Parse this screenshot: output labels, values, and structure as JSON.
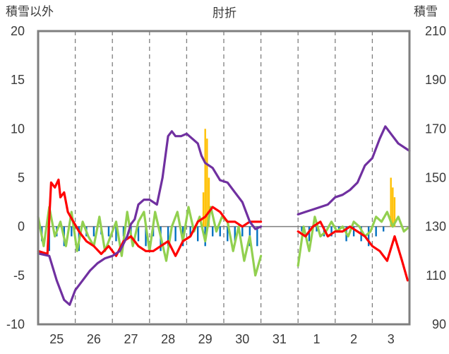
{
  "chart_data": {
    "type": "line",
    "title": "肘折",
    "ylabel_left": "積雪以外",
    "ylabel_right": "積雪",
    "ylim_left": [
      -10,
      20
    ],
    "ylim_right": [
      90,
      210
    ],
    "yticks_left": [
      "20",
      "15",
      "10",
      "5",
      "0",
      "-5",
      "-10"
    ],
    "yticks_right": [
      "210",
      "190",
      "170",
      "150",
      "130",
      "110",
      "90"
    ],
    "xlim": [
      24.5,
      34.5
    ],
    "categories": [
      "25",
      "26",
      "27",
      "28",
      "29",
      "30",
      "31",
      "1",
      "2",
      "3"
    ],
    "grid": "vertical-dashed",
    "colors": {
      "purple_series": "#7030a0",
      "red_series": "#ff0000",
      "green_series": "#92d050",
      "blue_bars": "#0070c0",
      "orange_bars": "#ffc000",
      "frame": "#7f7f7f",
      "grid": "#7f7f7f"
    },
    "series": [
      {
        "axis": "right",
        "color": "#7030a0",
        "x": [
          24.5,
          24.8,
          25.0,
          25.2,
          25.35,
          25.5,
          25.7,
          25.9,
          26.1,
          26.3,
          26.5,
          26.7,
          26.8,
          26.9,
          27.0,
          27.1,
          27.2,
          27.35,
          27.5,
          27.7,
          27.85,
          28.0,
          28.1,
          28.2,
          28.35,
          28.5,
          28.65,
          28.8,
          28.9,
          29.0,
          29.2,
          29.4,
          29.6,
          29.8,
          30.0,
          30.2,
          30.35,
          30.5
        ],
        "y": [
          119,
          118,
          108,
          100,
          98,
          104,
          108,
          112,
          115,
          117,
          118,
          120,
          123,
          126,
          131,
          133,
          139,
          141,
          141,
          139,
          150,
          167,
          169,
          167,
          167,
          168,
          166,
          164,
          159,
          156,
          154,
          149,
          148,
          144,
          140,
          132,
          129,
          130
        ],
        "gaps_after": [
          30.5
        ],
        "x2": [
          31.5,
          31.7,
          31.9,
          32.1,
          32.3,
          32.5,
          32.7,
          32.9,
          33.1,
          33.3,
          33.5,
          33.7,
          33.85,
          34.0,
          34.2,
          34.4,
          34.5
        ],
        "y2": [
          135,
          136,
          137,
          138,
          139,
          142,
          143,
          145,
          148,
          155,
          158,
          166,
          171,
          168,
          164,
          162,
          161
        ]
      },
      {
        "axis": "left",
        "color": "#ff0000",
        "x": [
          24.5,
          24.75,
          24.85,
          24.95,
          25.05,
          25.1,
          25.2,
          25.3,
          25.45,
          25.6,
          25.8,
          26.0,
          26.2,
          26.4,
          26.6,
          26.8,
          27.0,
          27.2,
          27.4,
          27.6,
          27.8,
          28.0,
          28.2,
          28.4,
          28.6,
          28.8,
          29.0,
          29.2,
          29.4,
          29.6,
          29.8,
          30.0,
          30.2,
          30.4,
          30.5
        ],
        "y": [
          -2.5,
          -2.8,
          4.5,
          4.0,
          4.8,
          3.0,
          3.5,
          1.5,
          0.5,
          -0.5,
          -1.5,
          -2.0,
          -2.8,
          -2.0,
          -3.0,
          -1.5,
          -1.0,
          -2.0,
          -2.5,
          -2.5,
          -2.0,
          -1.5,
          -3.0,
          -1.5,
          -1.0,
          0.5,
          1.0,
          2.0,
          1.5,
          0.5,
          0.5,
          0.0,
          0.5,
          0.5,
          0.5
        ],
        "x2": [
          31.5,
          31.7,
          31.9,
          32.1,
          32.3,
          32.5,
          32.7,
          32.9,
          33.1,
          33.3,
          33.5,
          33.7,
          33.9,
          34.1,
          34.3,
          34.45
        ],
        "y2": [
          -0.5,
          -1.0,
          0.0,
          0.5,
          -1.0,
          -0.5,
          -0.5,
          0.0,
          -0.5,
          -1.0,
          -2.0,
          -2.5,
          -3.5,
          -1.0,
          -3.5,
          -5.5
        ]
      },
      {
        "axis": "left",
        "color": "#92d050",
        "x": [
          24.5,
          24.65,
          24.8,
          24.95,
          25.1,
          25.25,
          25.4,
          25.55,
          25.7,
          25.85,
          26.0,
          26.15,
          26.3,
          26.45,
          26.6,
          26.75,
          26.9,
          27.05,
          27.2,
          27.35,
          27.5,
          27.65,
          27.8,
          27.95,
          28.1,
          28.25,
          28.4,
          28.55,
          28.7,
          28.85,
          29.0,
          29.15,
          29.3,
          29.45,
          29.6,
          29.75,
          29.9,
          30.05,
          30.2,
          30.35,
          30.5
        ],
        "y": [
          1.0,
          -2.0,
          2.0,
          -1.0,
          0.5,
          -2.0,
          1.5,
          -2.5,
          0.5,
          -1.0,
          -2.0,
          1.0,
          -2.5,
          -1.0,
          0.5,
          -3.0,
          1.5,
          -2.0,
          0.5,
          1.5,
          -2.5,
          1.5,
          -1.0,
          -3.5,
          0.0,
          1.5,
          -1.5,
          2.0,
          -0.5,
          1.0,
          -1.5,
          2.0,
          -0.5,
          1.0,
          0.5,
          -2.5,
          0.0,
          -3.5,
          -1.0,
          -5.0,
          -3.0
        ],
        "x2": [
          31.5,
          31.65,
          31.8,
          31.95,
          32.1,
          32.25,
          32.4,
          32.55,
          32.7,
          32.85,
          33.0,
          33.15,
          33.3,
          33.45,
          33.6,
          33.75,
          33.9,
          34.05,
          34.2,
          34.35,
          34.5
        ],
        "y2": [
          -4.0,
          0.0,
          -2.5,
          1.0,
          -1.0,
          -0.5,
          0.5,
          -0.5,
          0.0,
          -1.0,
          0.5,
          0.0,
          -1.0,
          -0.5,
          1.0,
          0.5,
          1.5,
          0.0,
          1.0,
          -0.5,
          0.0
        ]
      }
    ],
    "bars": [
      {
        "color": "#0070c0",
        "axis": "left",
        "x": [
          24.6,
          24.8,
          25.0,
          25.2,
          25.4,
          25.6,
          25.8,
          26.0,
          26.2,
          26.4,
          26.6,
          26.8,
          27.0,
          27.2,
          27.4,
          27.6,
          27.8,
          28.0,
          28.2,
          28.4,
          28.6,
          28.8,
          29.0,
          29.2,
          29.4,
          29.6,
          29.8,
          30.0,
          30.2,
          30.4,
          31.6,
          31.8,
          32.0,
          32.2,
          32.4,
          32.6,
          32.8,
          33.0,
          33.2,
          33.4,
          33.6,
          33.8
        ],
        "y": [
          -1.5,
          -2.5,
          -1.0,
          -2.0,
          -1.0,
          -2.5,
          -1.0,
          -1.0,
          -0.8,
          -1.0,
          -1.5,
          -1.0,
          -1.2,
          -1.5,
          -2.0,
          -1.0,
          -2.5,
          -2.0,
          -1.5,
          -2.0,
          -1.0,
          -1.5,
          -2.0,
          -1.0,
          -1.0,
          -1.5,
          -1.5,
          -1.0,
          -2.0,
          -2.0,
          -0.5,
          -1.5,
          -0.5,
          -1.0,
          -1.0,
          -0.5,
          -1.5,
          -1.0,
          -1.5,
          -2.0,
          -1.0,
          -0.5
        ]
      },
      {
        "color": "#ffc000",
        "axis": "left",
        "x": [
          28.95,
          29.0,
          29.05,
          29.1,
          34.0,
          34.05,
          34.1
        ],
        "y": [
          3.5,
          10.0,
          9.0,
          5.0,
          5.0,
          4.0,
          3.0
        ]
      }
    ]
  }
}
